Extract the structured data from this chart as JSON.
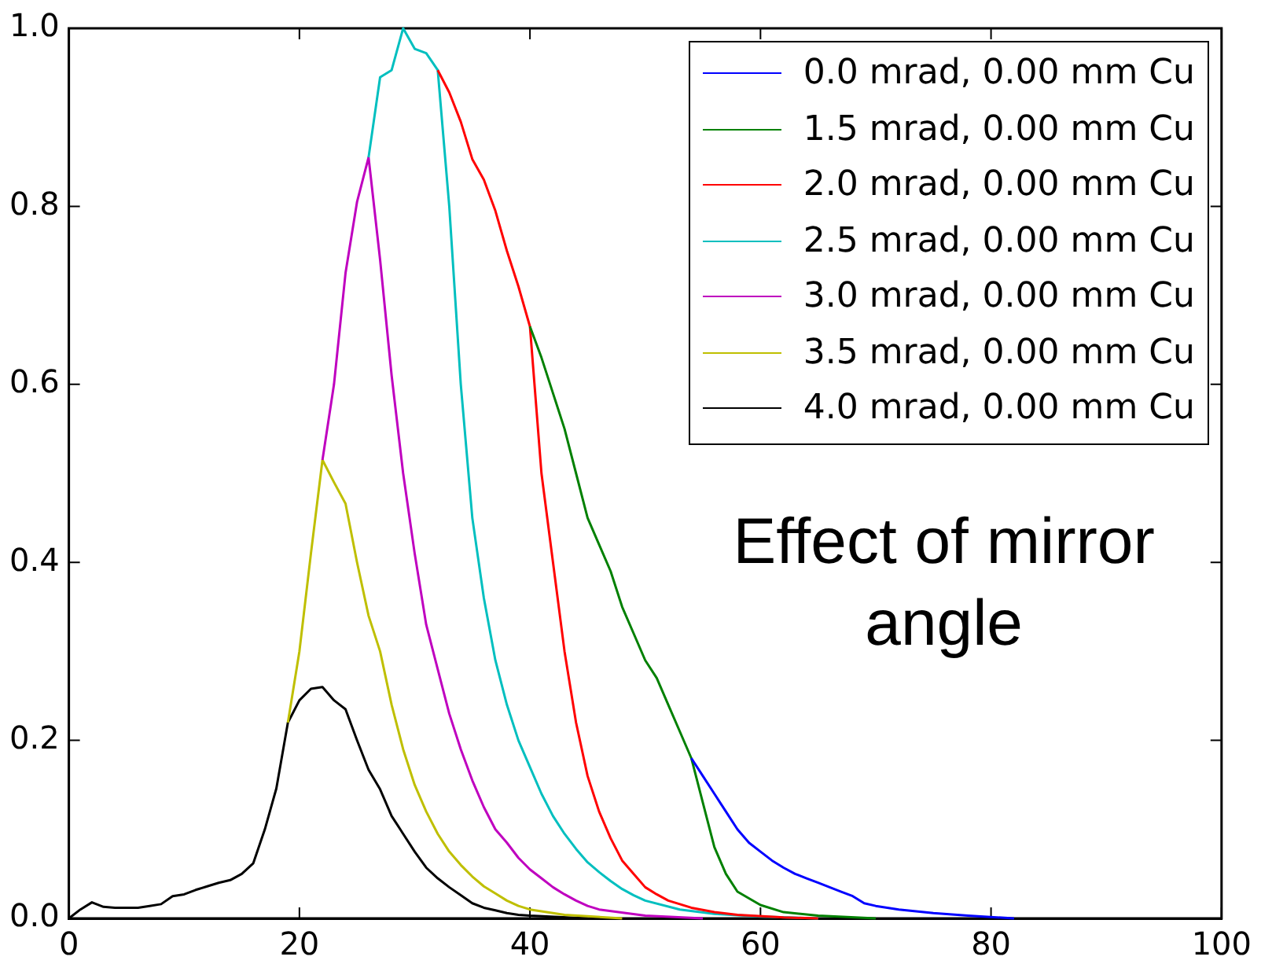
{
  "chart_data": {
    "type": "line",
    "marker": "none",
    "line_style": "solid",
    "grid": false,
    "legend": "top right",
    "xlim": [
      0,
      100
    ],
    "xticks": [
      0,
      20,
      40,
      60,
      80,
      100
    ],
    "ylim": [
      0,
      1
    ],
    "yticks": [
      {
        "value": 0,
        "label": "0.0"
      },
      {
        "value": 0.2,
        "label": "0.2"
      },
      {
        "value": 0.4,
        "label": "0.4"
      },
      {
        "value": 0.6,
        "label": "0.6"
      },
      {
        "value": 0.8,
        "label": "0.8"
      },
      {
        "value": 1,
        "label": "1.0"
      }
    ],
    "annotations": [
      "Effect of mirror angle"
    ],
    "series": [
      {
        "name": "0.0 mrad, 0.00 mm Cu",
        "color": "#0000ff",
        "x": [
          54,
          55,
          56,
          57,
          58,
          59,
          60,
          61,
          62,
          63,
          64,
          65,
          66,
          67,
          68,
          69,
          70,
          72,
          75,
          78,
          82
        ],
        "values": [
          0.18,
          0.16,
          0.14,
          0.12,
          0.1,
          0.085,
          0.075,
          0.065,
          0.057,
          0.05,
          0.045,
          0.04,
          0.035,
          0.03,
          0.025,
          0.017,
          0.014,
          0.01,
          0.006,
          0.003,
          0
        ]
      },
      {
        "name": "1.5 mrad, 0.00 mm Cu",
        "color": "#008000",
        "x": [
          40,
          41,
          42,
          43,
          44,
          45,
          46,
          47,
          48,
          49,
          50,
          51,
          52,
          53,
          54,
          55,
          56,
          57,
          58,
          60,
          62,
          65,
          70
        ],
        "values": [
          0.665,
          0.63,
          0.59,
          0.55,
          0.5,
          0.45,
          0.42,
          0.39,
          0.35,
          0.32,
          0.29,
          0.27,
          0.24,
          0.21,
          0.18,
          0.13,
          0.08,
          0.05,
          0.03,
          0.015,
          0.007,
          0.003,
          0
        ]
      },
      {
        "name": "2.0 mrad, 0.00 mm Cu",
        "color": "#ff0000",
        "x": [
          32,
          33,
          34,
          35,
          36,
          37,
          38,
          39,
          40,
          41,
          42,
          43,
          44,
          45,
          46,
          47,
          48,
          49,
          50,
          51,
          52,
          53,
          54,
          56,
          58,
          62,
          65
        ],
        "values": [
          0.953,
          0.928,
          0.895,
          0.853,
          0.83,
          0.795,
          0.75,
          0.71,
          0.665,
          0.5,
          0.4,
          0.3,
          0.22,
          0.16,
          0.12,
          0.09,
          0.065,
          0.05,
          0.035,
          0.027,
          0.02,
          0.016,
          0.012,
          0.007,
          0.004,
          0.001,
          0
        ]
      },
      {
        "name": "2.5 mrad, 0.00 mm Cu",
        "color": "#00bfbf",
        "x": [
          26,
          27,
          28,
          29,
          30,
          31,
          32,
          33,
          34,
          35,
          36,
          37,
          38,
          39,
          40,
          41,
          42,
          43,
          44,
          45,
          46,
          47,
          48,
          49,
          50,
          53,
          56,
          60,
          65
        ],
        "values": [
          0.855,
          0.945,
          0.953,
          1.0,
          0.977,
          0.972,
          0.953,
          0.8,
          0.6,
          0.45,
          0.36,
          0.29,
          0.24,
          0.2,
          0.17,
          0.14,
          0.115,
          0.095,
          0.078,
          0.063,
          0.052,
          0.042,
          0.033,
          0.026,
          0.02,
          0.01,
          0.005,
          0.002,
          0
        ]
      },
      {
        "name": "3.0 mrad, 0.00 mm Cu",
        "color": "#bf00bf",
        "x": [
          22,
          23,
          24,
          25,
          26,
          27,
          28,
          29,
          30,
          31,
          32,
          33,
          34,
          35,
          36,
          37,
          38,
          39,
          40,
          41,
          42,
          43,
          44,
          45,
          46,
          50,
          55
        ],
        "values": [
          0.515,
          0.6,
          0.725,
          0.805,
          0.855,
          0.74,
          0.61,
          0.5,
          0.41,
          0.33,
          0.28,
          0.23,
          0.19,
          0.155,
          0.125,
          0.1,
          0.085,
          0.068,
          0.055,
          0.045,
          0.035,
          0.027,
          0.02,
          0.014,
          0.01,
          0.003,
          0
        ]
      },
      {
        "name": "3.5 mrad, 0.00 mm Cu",
        "color": "#bfbf00",
        "x": [
          19,
          20,
          21,
          22,
          23,
          24,
          25,
          26,
          27,
          28,
          29,
          30,
          31,
          32,
          33,
          34,
          35,
          36,
          37,
          38,
          39,
          40,
          43,
          48
        ],
        "values": [
          0.22,
          0.3,
          0.41,
          0.515,
          0.49,
          0.466,
          0.4,
          0.34,
          0.3,
          0.24,
          0.19,
          0.15,
          0.12,
          0.095,
          0.075,
          0.06,
          0.047,
          0.036,
          0.028,
          0.02,
          0.014,
          0.01,
          0.004,
          0
        ]
      },
      {
        "name": "4.0 mrad, 0.00 mm Cu",
        "color": "#000000",
        "x": [
          0,
          1,
          2,
          3,
          4,
          5,
          6,
          7,
          8,
          9,
          10,
          11,
          12,
          13,
          14,
          15,
          16,
          17,
          18,
          19,
          20,
          21,
          22,
          23,
          24,
          25,
          26,
          27,
          28,
          29,
          30,
          31,
          32,
          33,
          34,
          35,
          36,
          37,
          38,
          39,
          40,
          45
        ],
        "values": [
          0,
          0.01,
          0.018,
          0.013,
          0.012,
          0.012,
          0.012,
          0.014,
          0.016,
          0.025,
          0.027,
          0.032,
          0.036,
          0.04,
          0.043,
          0.05,
          0.062,
          0.1,
          0.146,
          0.22,
          0.245,
          0.258,
          0.26,
          0.245,
          0.235,
          0.2,
          0.167,
          0.145,
          0.115,
          0.095,
          0.075,
          0.057,
          0.045,
          0.035,
          0.026,
          0.017,
          0.012,
          0.009,
          0.006,
          0.004,
          0.003,
          0
        ]
      }
    ]
  }
}
